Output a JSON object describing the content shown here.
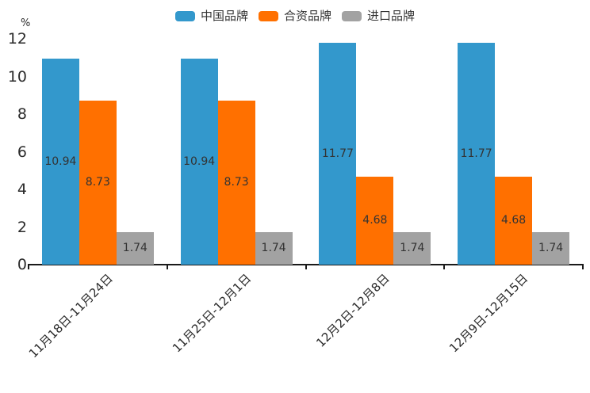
{
  "chart_data": {
    "type": "bar",
    "title": "",
    "ylabel": "%",
    "categories": [
      "11月18日-11月24日",
      "11月25日-12月1日",
      "12月2日-12月8日",
      "12月9日-12月15日"
    ],
    "series": [
      {
        "name": "中国品牌",
        "color": "#3398CC",
        "values": [
          10.94,
          10.94,
          11.77,
          11.77
        ]
      },
      {
        "name": "合资品牌",
        "color": "#FF7000",
        "values": [
          8.73,
          8.73,
          4.68,
          4.68
        ]
      },
      {
        "name": "进口品牌",
        "color": "#A2A2A2",
        "values": [
          1.74,
          1.74,
          1.74,
          1.74
        ]
      }
    ],
    "value_labels": [
      "10.94",
      "10.94",
      "11.77",
      "11.77",
      "8.73",
      "8.73",
      "4.68",
      "4.68",
      "1.74",
      "1.74",
      "1.74",
      "1.74"
    ],
    "ylim": [
      0,
      12
    ],
    "yticks": [
      0,
      2,
      4,
      6,
      8,
      10,
      12
    ],
    "legend_position": "top-center",
    "grid": false,
    "colors": {
      "axis": "#1a1a1a",
      "tick_text": "#2b2b2b",
      "value_text": "#333333",
      "background": "#ffffff"
    }
  }
}
